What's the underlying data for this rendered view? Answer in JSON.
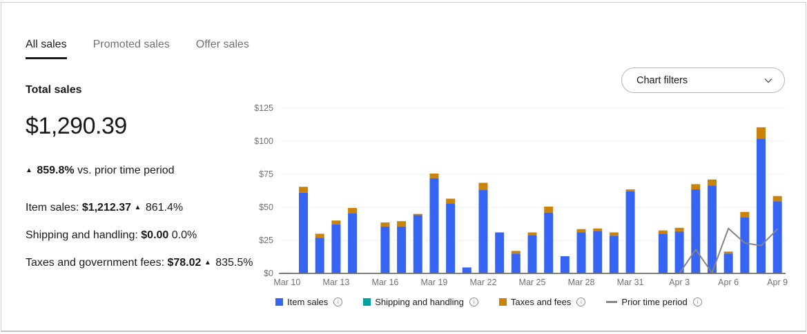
{
  "tabs": [
    {
      "label": "All sales",
      "active": true
    },
    {
      "label": "Promoted sales",
      "active": false
    },
    {
      "label": "Offer sales",
      "active": false
    }
  ],
  "summary": {
    "title": "Total sales",
    "total": "$1,290.39",
    "change_arrow": "▲",
    "change": "859.8%",
    "change_suffix": "vs. prior time period",
    "lines": [
      {
        "label": "Item sales:",
        "value": "$1,212.37",
        "arrow": "▲",
        "pct": "861.4%"
      },
      {
        "label": "Shipping and handling:",
        "value": "$0.00",
        "arrow": "",
        "pct": "0.0%"
      },
      {
        "label": "Taxes and government fees:",
        "value": "$78.02",
        "arrow": "▲",
        "pct": "835.5%"
      }
    ]
  },
  "chart_filters": {
    "label": "Chart filters"
  },
  "chart_data": {
    "type": "bar",
    "stacked": true,
    "categories": [
      "Mar 10",
      "Mar 11",
      "Mar 12",
      "Mar 13",
      "Mar 14",
      "Mar 15",
      "Mar 16",
      "Mar 17",
      "Mar 18",
      "Mar 19",
      "Mar 20",
      "Mar 21",
      "Mar 22",
      "Mar 23",
      "Mar 24",
      "Mar 25",
      "Mar 26",
      "Mar 27",
      "Mar 28",
      "Mar 29",
      "Mar 30",
      "Mar 31",
      "Apr 1",
      "Apr 2",
      "Apr 3",
      "Apr 4",
      "Apr 5",
      "Apr 6",
      "Apr 7",
      "Apr 8",
      "Apr 9"
    ],
    "x_tick_labels": [
      "Mar 10",
      "Mar 13",
      "Mar 16",
      "Mar 19",
      "Mar 22",
      "Mar 25",
      "Mar 28",
      "Mar 31",
      "Apr 3",
      "Apr 6",
      "Apr 9"
    ],
    "ylim": [
      0,
      125
    ],
    "y_tick_values": [
      0,
      25,
      50,
      75,
      100,
      125
    ],
    "y_ticks": [
      "$0",
      "$25",
      "$50",
      "$75",
      "$100",
      "$125"
    ],
    "grid": true,
    "legend_position": "bottom",
    "series": [
      {
        "name": "Item sales",
        "type": "bar",
        "color": "#3665F3",
        "values": [
          0.5,
          61,
          27,
          37,
          45.5,
          0,
          35.5,
          35.5,
          44,
          72,
          53,
          4.5,
          63,
          31,
          15,
          29,
          46,
          13,
          31,
          32,
          28.5,
          62,
          0,
          30,
          31.5,
          63.5,
          66.5,
          15,
          42.5,
          102,
          54.5
        ]
      },
      {
        "name": "Shipping and handling",
        "type": "bar",
        "color": "#00A2A2",
        "values": [
          0,
          0,
          0,
          0,
          0,
          0,
          0,
          0,
          0,
          0,
          0,
          0,
          0,
          0,
          0,
          0,
          0,
          0,
          0,
          0,
          0,
          0,
          0,
          0,
          0,
          0,
          0,
          0,
          0,
          0,
          0
        ]
      },
      {
        "name": "Taxes and fees",
        "type": "bar",
        "color": "#C9830B",
        "values": [
          0,
          4.5,
          3,
          3,
          4,
          0,
          3,
          4,
          1,
          3.5,
          3.5,
          0,
          5.5,
          0,
          2,
          2,
          4.5,
          0,
          2.5,
          2,
          2.5,
          1.5,
          0,
          2.5,
          3,
          4,
          4.5,
          1.5,
          4,
          8.5,
          4
        ]
      },
      {
        "name": "Prior time period",
        "type": "line",
        "color": "#848484",
        "values": [
          null,
          null,
          null,
          null,
          null,
          null,
          null,
          null,
          null,
          null,
          null,
          null,
          null,
          null,
          null,
          null,
          null,
          null,
          null,
          null,
          null,
          null,
          null,
          0,
          0,
          18,
          0.5,
          34,
          23,
          21,
          33.5
        ]
      }
    ],
    "axis_color": "#6b6b6b",
    "gridline_color": "#f1f1f1",
    "tick_label_color": "#707070"
  }
}
